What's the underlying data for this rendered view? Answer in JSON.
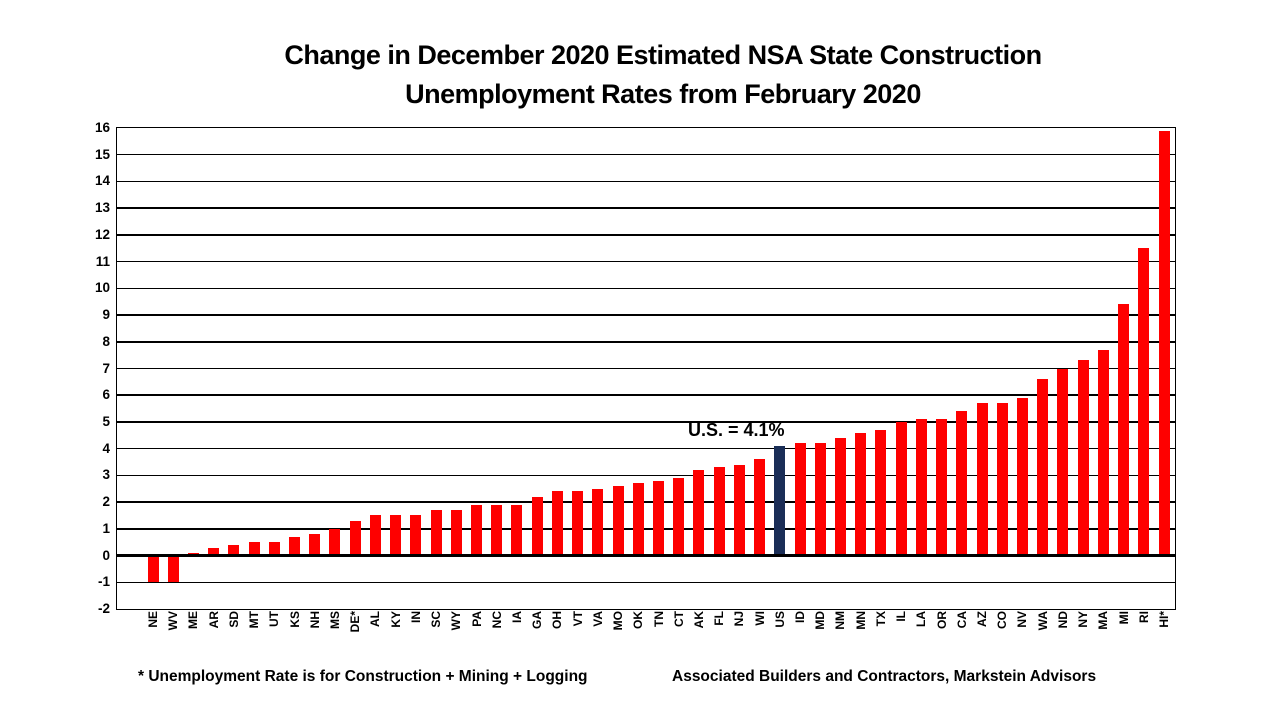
{
  "title": {
    "line1": "Change in December 2020 Estimated NSA State Construction",
    "line2": "Unemployment Rates from February 2020"
  },
  "chart_data": {
    "type": "bar",
    "title": "Change in December 2020 Estimated NSA State Construction Unemployment Rates from February 2020",
    "categories": [
      "NE",
      "WV",
      "ME",
      "AR",
      "SD",
      "MT",
      "UT",
      "KS",
      "NH",
      "MS",
      "DE*",
      "AL",
      "KY",
      "IN",
      "SC",
      "WY",
      "PA",
      "NC",
      "IA",
      "GA",
      "OH",
      "VT",
      "VA",
      "MO",
      "OK",
      "TN",
      "CT",
      "AK",
      "FL",
      "NJ",
      "WI",
      "US",
      "ID",
      "MD",
      "NM",
      "MN",
      "TX",
      "IL",
      "LA",
      "OR",
      "CA",
      "AZ",
      "CO",
      "NV",
      "WA",
      "ND",
      "NY",
      "MA",
      "MI",
      "RI",
      "HI*"
    ],
    "values": [
      -1.0,
      -1.0,
      0.1,
      0.3,
      0.4,
      0.5,
      0.5,
      0.7,
      0.8,
      1.0,
      1.3,
      1.5,
      1.5,
      1.5,
      1.7,
      1.7,
      1.9,
      1.9,
      1.9,
      2.2,
      2.4,
      2.4,
      2.5,
      2.6,
      2.7,
      2.8,
      2.9,
      3.2,
      3.3,
      3.4,
      3.6,
      4.1,
      4.2,
      4.2,
      4.4,
      4.6,
      4.7,
      5.0,
      5.1,
      5.1,
      5.4,
      5.7,
      5.7,
      5.9,
      6.6,
      7.0,
      7.3,
      7.7,
      9.4,
      11.5,
      15.9
    ],
    "highlight_category": "US",
    "annotation": "U.S. = 4.1%",
    "bar_color": "#FE0000",
    "highlight_color": "#1A2E57",
    "xlabel": "",
    "ylabel": "",
    "ylim": [
      -2,
      16
    ],
    "ytick_step": 1,
    "grid": "horizontal",
    "legend": "none"
  },
  "footnotes": {
    "left": "* Unemployment Rate is for Construction + Mining + Logging",
    "right": "Associated Builders and Contractors, Markstein Advisors"
  }
}
